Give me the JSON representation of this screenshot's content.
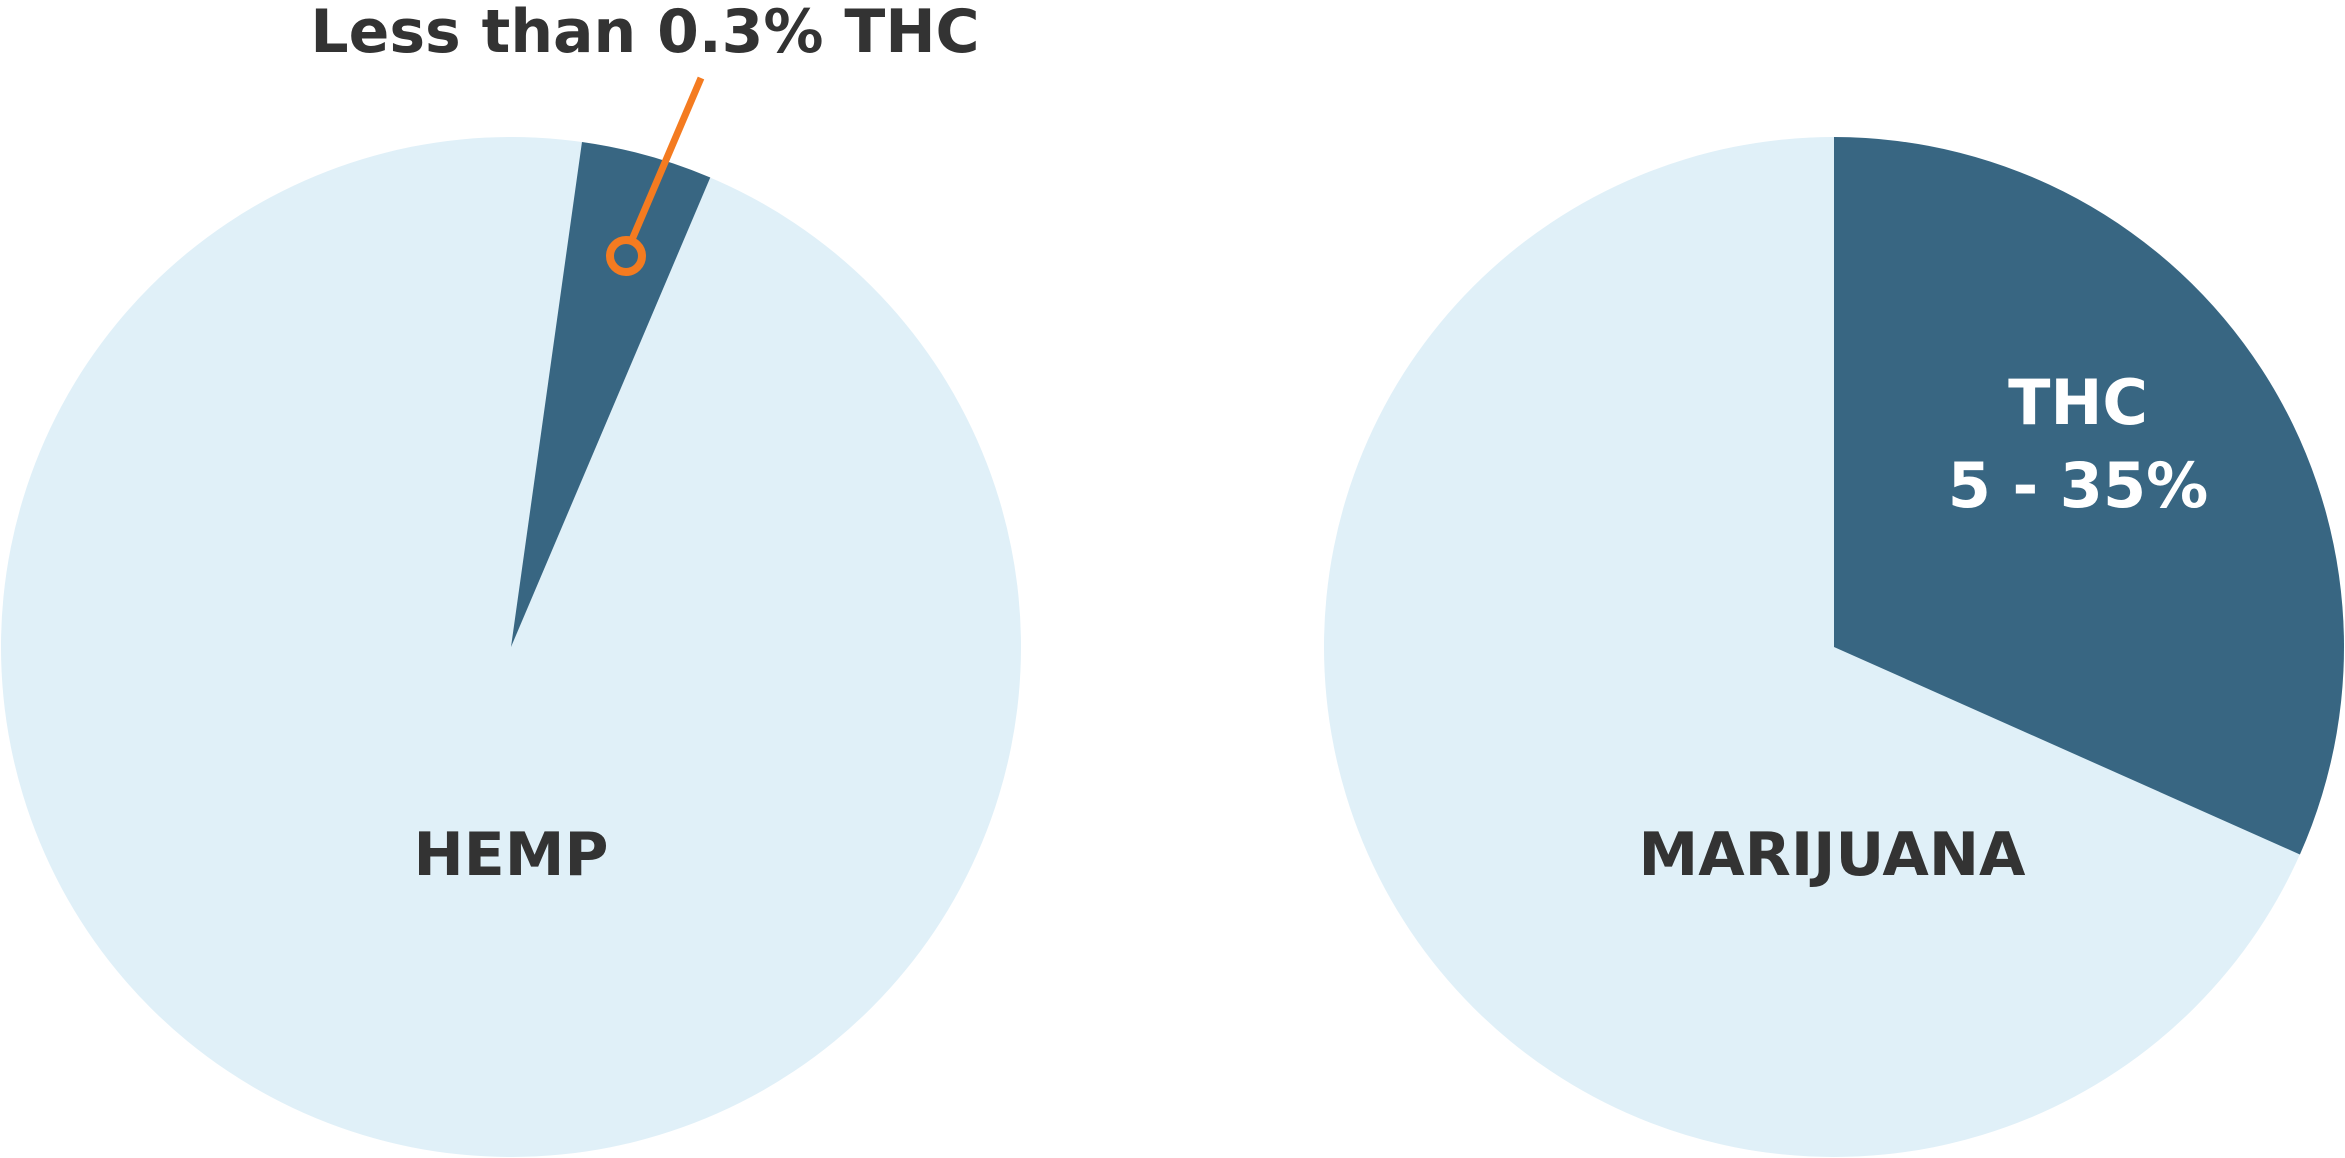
{
  "colors": {
    "background": "#ffffff",
    "base_slice": "#e0f0f8",
    "thc_slice": "#386682",
    "callout": "#f47b20",
    "dark_text": "#333333",
    "light_text": "#ffffff"
  },
  "chart_data": [
    {
      "type": "pie",
      "chart_label": "HEMP",
      "slices": [
        {
          "label": "Less than 0.3% THC",
          "value": 0.3,
          "unit": "%",
          "color": "#386682",
          "start_angle_deg": 8,
          "end_angle_deg": 23
        },
        {
          "label": "",
          "value": 99.7,
          "unit": "%",
          "color": "#e0f0f8"
        }
      ],
      "annotation": "Less than 0.3% THC",
      "legend": "none",
      "grid": false
    },
    {
      "type": "pie",
      "chart_label": "MARIJUANA",
      "slices": [
        {
          "label": "THC 5 - 35%",
          "value": 35,
          "unit": "%",
          "color": "#386682",
          "start_angle_deg": 0,
          "end_angle_deg": 114
        },
        {
          "label": "",
          "value": 65,
          "unit": "%",
          "color": "#e0f0f8"
        }
      ],
      "annotation_lines": [
        "THC",
        "5 - 35%"
      ],
      "legend": "none",
      "grid": false
    }
  ]
}
